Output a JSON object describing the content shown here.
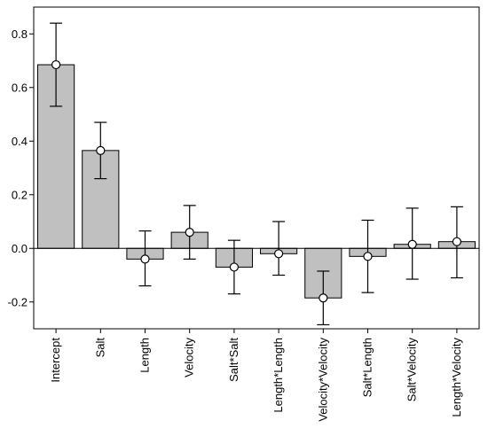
{
  "chart_data": {
    "type": "bar",
    "title": "",
    "xlabel": "",
    "ylabel": "",
    "ylim": [
      -0.3,
      0.9
    ],
    "yticks": [
      "0.8",
      "0.6",
      "0.4",
      "0.2",
      "0.0",
      "-0.2"
    ],
    "yticks_values": [
      0.8,
      0.6,
      0.4,
      0.2,
      0.0,
      -0.2
    ],
    "categories": [
      "Intercept",
      "Salt",
      "Length",
      "Velocity",
      "Salt*Salt",
      "Length*Length",
      "Velocity*Velocity",
      "Salt*Length",
      "Salt*Velocity",
      "Length*Velocity"
    ],
    "values": [
      0.685,
      0.365,
      -0.04,
      0.06,
      -0.07,
      -0.02,
      -0.185,
      -0.03,
      0.015,
      0.025
    ],
    "error_low": [
      0.53,
      0.26,
      -0.14,
      -0.04,
      -0.17,
      -0.1,
      -0.285,
      -0.165,
      -0.115,
      -0.11
    ],
    "error_high": [
      0.84,
      0.47,
      0.065,
      0.16,
      0.03,
      0.1,
      -0.085,
      0.105,
      0.15,
      0.155
    ],
    "bar_color": "#c0c0c0",
    "marker": "open-circle",
    "grid": false,
    "legend": "none"
  }
}
